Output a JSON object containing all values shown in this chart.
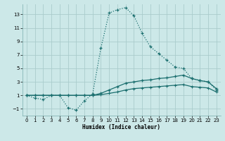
{
  "xlabel": "Humidex (Indice chaleur)",
  "bg_color": "#cce8e8",
  "grid_color": "#aacccc",
  "line_color": "#1a6e6e",
  "xlim": [
    -0.5,
    23.5
  ],
  "ylim": [
    -2,
    14.5
  ],
  "yticks": [
    -1,
    1,
    3,
    5,
    7,
    9,
    11,
    13
  ],
  "xticks": [
    0,
    1,
    2,
    3,
    4,
    5,
    6,
    7,
    8,
    9,
    10,
    11,
    12,
    13,
    14,
    15,
    16,
    17,
    18,
    19,
    20,
    21,
    22,
    23
  ],
  "series1_x": [
    0,
    1,
    2,
    3,
    4,
    5,
    6,
    7,
    8,
    9,
    10,
    11,
    12,
    13,
    14,
    15,
    16,
    17,
    18,
    19,
    20,
    21,
    22,
    23
  ],
  "series1_y": [
    1.0,
    0.6,
    0.4,
    1.0,
    1.0,
    -0.8,
    -1.2,
    0.2,
    1.2,
    8.0,
    13.2,
    13.7,
    14.0,
    12.8,
    10.2,
    8.2,
    7.2,
    6.2,
    5.2,
    5.0,
    3.5,
    3.2,
    3.0,
    1.8
  ],
  "series2_x": [
    0,
    1,
    2,
    3,
    4,
    5,
    6,
    7,
    8,
    9,
    10,
    11,
    12,
    13,
    14,
    15,
    16,
    17,
    18,
    19,
    20,
    21,
    22,
    23
  ],
  "series2_y": [
    1.0,
    1.0,
    1.0,
    1.0,
    1.0,
    1.0,
    1.0,
    1.0,
    1.0,
    1.3,
    1.8,
    2.3,
    2.8,
    3.0,
    3.2,
    3.3,
    3.5,
    3.6,
    3.8,
    4.0,
    3.5,
    3.2,
    3.0,
    2.0
  ],
  "series3_x": [
    0,
    1,
    2,
    3,
    4,
    5,
    6,
    7,
    8,
    9,
    10,
    11,
    12,
    13,
    14,
    15,
    16,
    17,
    18,
    19,
    20,
    21,
    22,
    23
  ],
  "series3_y": [
    1.0,
    1.0,
    1.0,
    1.0,
    1.0,
    1.0,
    1.0,
    1.0,
    1.0,
    1.1,
    1.3,
    1.5,
    1.8,
    2.0,
    2.1,
    2.2,
    2.3,
    2.4,
    2.5,
    2.6,
    2.3,
    2.2,
    2.1,
    1.5
  ]
}
